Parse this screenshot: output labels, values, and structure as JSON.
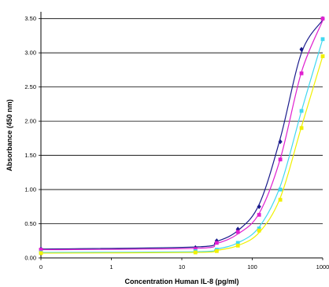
{
  "chart_data": {
    "type": "line",
    "title": "",
    "xlabel": "Concentration Human  IL-8 (pg/ml)",
    "ylabel": "Absorbance (450 nm)",
    "xscale": "log",
    "xticks": [
      0,
      1,
      10,
      100,
      1000
    ],
    "xtick_labels": [
      "0",
      "1",
      "10",
      "100",
      "1000"
    ],
    "xlim": [
      0,
      1000
    ],
    "yticks": [
      0.0,
      0.5,
      1.0,
      1.5,
      2.0,
      2.5,
      3.0,
      3.5
    ],
    "ytick_labels": [
      "0.00",
      "0.50",
      "1.00",
      "1.50",
      "2.00",
      "2.50",
      "3.00",
      "3.50"
    ],
    "ylim": [
      0,
      3.6
    ],
    "grid": "horizontal",
    "legend": "none",
    "series": [
      {
        "color": "#1a1a8c",
        "marker": "diamond",
        "points": [
          {
            "x": 0,
            "y": 0.13
          },
          {
            "x": 15.6,
            "y": 0.15
          },
          {
            "x": 31.3,
            "y": 0.25
          },
          {
            "x": 62.5,
            "y": 0.42
          },
          {
            "x": 125,
            "y": 0.75
          },
          {
            "x": 250,
            "y": 1.7
          },
          {
            "x": 500,
            "y": 3.05
          },
          {
            "x": 1000,
            "y": 3.5
          }
        ],
        "curve": [
          {
            "x": 0,
            "y": 0.13
          },
          {
            "x": 15.6,
            "y": 0.16
          },
          {
            "x": 31.3,
            "y": 0.24
          },
          {
            "x": 62.5,
            "y": 0.4
          },
          {
            "x": 125,
            "y": 0.78
          },
          {
            "x": 250,
            "y": 1.75
          },
          {
            "x": 500,
            "y": 3.0
          },
          {
            "x": 1000,
            "y": 3.48
          }
        ]
      },
      {
        "color": "#e020d0",
        "marker": "square",
        "points": [
          {
            "x": 0,
            "y": 0.12
          },
          {
            "x": 15.6,
            "y": 0.13
          },
          {
            "x": 31.3,
            "y": 0.22
          },
          {
            "x": 62.5,
            "y": 0.38
          },
          {
            "x": 125,
            "y": 0.63
          },
          {
            "x": 250,
            "y": 1.44
          },
          {
            "x": 500,
            "y": 2.7
          },
          {
            "x": 1000,
            "y": 3.5
          }
        ],
        "curve": [
          {
            "x": 0,
            "y": 0.12
          },
          {
            "x": 15.6,
            "y": 0.14
          },
          {
            "x": 31.3,
            "y": 0.21
          },
          {
            "x": 62.5,
            "y": 0.35
          },
          {
            "x": 125,
            "y": 0.65
          },
          {
            "x": 250,
            "y": 1.45
          },
          {
            "x": 500,
            "y": 2.72
          },
          {
            "x": 1000,
            "y": 3.47
          }
        ]
      },
      {
        "color": "#40d8f0",
        "marker": "square",
        "points": [
          {
            "x": 0,
            "y": 0.08
          },
          {
            "x": 15.6,
            "y": 0.1
          },
          {
            "x": 31.3,
            "y": 0.12
          },
          {
            "x": 62.5,
            "y": 0.22
          },
          {
            "x": 125,
            "y": 0.43
          },
          {
            "x": 250,
            "y": 1.0
          },
          {
            "x": 500,
            "y": 2.15
          },
          {
            "x": 1000,
            "y": 3.2
          }
        ],
        "curve": [
          {
            "x": 0,
            "y": 0.08
          },
          {
            "x": 15.6,
            "y": 0.09
          },
          {
            "x": 31.3,
            "y": 0.13
          },
          {
            "x": 62.5,
            "y": 0.22
          },
          {
            "x": 125,
            "y": 0.45
          },
          {
            "x": 250,
            "y": 1.05
          },
          {
            "x": 500,
            "y": 2.15
          },
          {
            "x": 1000,
            "y": 3.2
          }
        ]
      },
      {
        "color": "#f0f000",
        "marker": "square",
        "points": [
          {
            "x": 0,
            "y": 0.07
          },
          {
            "x": 15.6,
            "y": 0.08
          },
          {
            "x": 31.3,
            "y": 0.1
          },
          {
            "x": 62.5,
            "y": 0.18
          },
          {
            "x": 125,
            "y": 0.4
          },
          {
            "x": 250,
            "y": 0.85
          },
          {
            "x": 500,
            "y": 1.9
          },
          {
            "x": 1000,
            "y": 2.95
          }
        ],
        "curve": [
          {
            "x": 0,
            "y": 0.07
          },
          {
            "x": 15.6,
            "y": 0.08
          },
          {
            "x": 31.3,
            "y": 0.11
          },
          {
            "x": 62.5,
            "y": 0.18
          },
          {
            "x": 125,
            "y": 0.37
          },
          {
            "x": 250,
            "y": 0.88
          },
          {
            "x": 500,
            "y": 1.92
          },
          {
            "x": 1000,
            "y": 2.95
          }
        ]
      }
    ]
  }
}
